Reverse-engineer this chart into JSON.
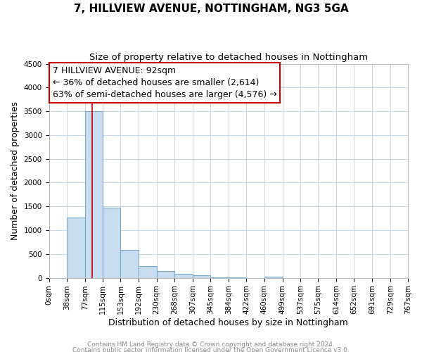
{
  "title": "7, HILLVIEW AVENUE, NOTTINGHAM, NG3 5GA",
  "subtitle": "Size of property relative to detached houses in Nottingham",
  "xlabel": "Distribution of detached houses by size in Nottingham",
  "ylabel": "Number of detached properties",
  "footnote1": "Contains HM Land Registry data © Crown copyright and database right 2024.",
  "footnote2": "Contains public sector information licensed under the Open Government Licence v3.0.",
  "bar_edges": [
    0,
    38,
    77,
    115,
    153,
    192,
    230,
    268,
    307,
    345,
    384,
    422,
    460,
    499,
    537,
    575,
    614,
    652,
    691,
    729,
    767
  ],
  "bar_heights": [
    0,
    1270,
    3500,
    1470,
    580,
    240,
    135,
    80,
    55,
    5,
    2,
    0,
    30,
    0,
    0,
    0,
    0,
    0,
    0,
    0
  ],
  "bar_color": "#c8ddf0",
  "bar_edge_color": "#7aabcc",
  "property_size": 92,
  "red_line_color": "#cc0000",
  "annotation_line1": "7 HILLVIEW AVENUE: 92sqm",
  "annotation_line2": "← 36% of detached houses are smaller (2,614)",
  "annotation_line3": "63% of semi-detached houses are larger (4,576) →",
  "annotation_box_color": "#cc0000",
  "ylim": [
    0,
    4500
  ],
  "yticks": [
    0,
    500,
    1000,
    1500,
    2000,
    2500,
    3000,
    3500,
    4000,
    4500
  ],
  "xlim": [
    0,
    767
  ],
  "bg_color": "#ffffff",
  "grid_color": "#c8d8e8",
  "title_fontsize": 11,
  "subtitle_fontsize": 9.5,
  "tick_label_fontsize": 7.5,
  "axis_label_fontsize": 9,
  "footnote_fontsize": 6.5,
  "annotation_fontsize": 9
}
